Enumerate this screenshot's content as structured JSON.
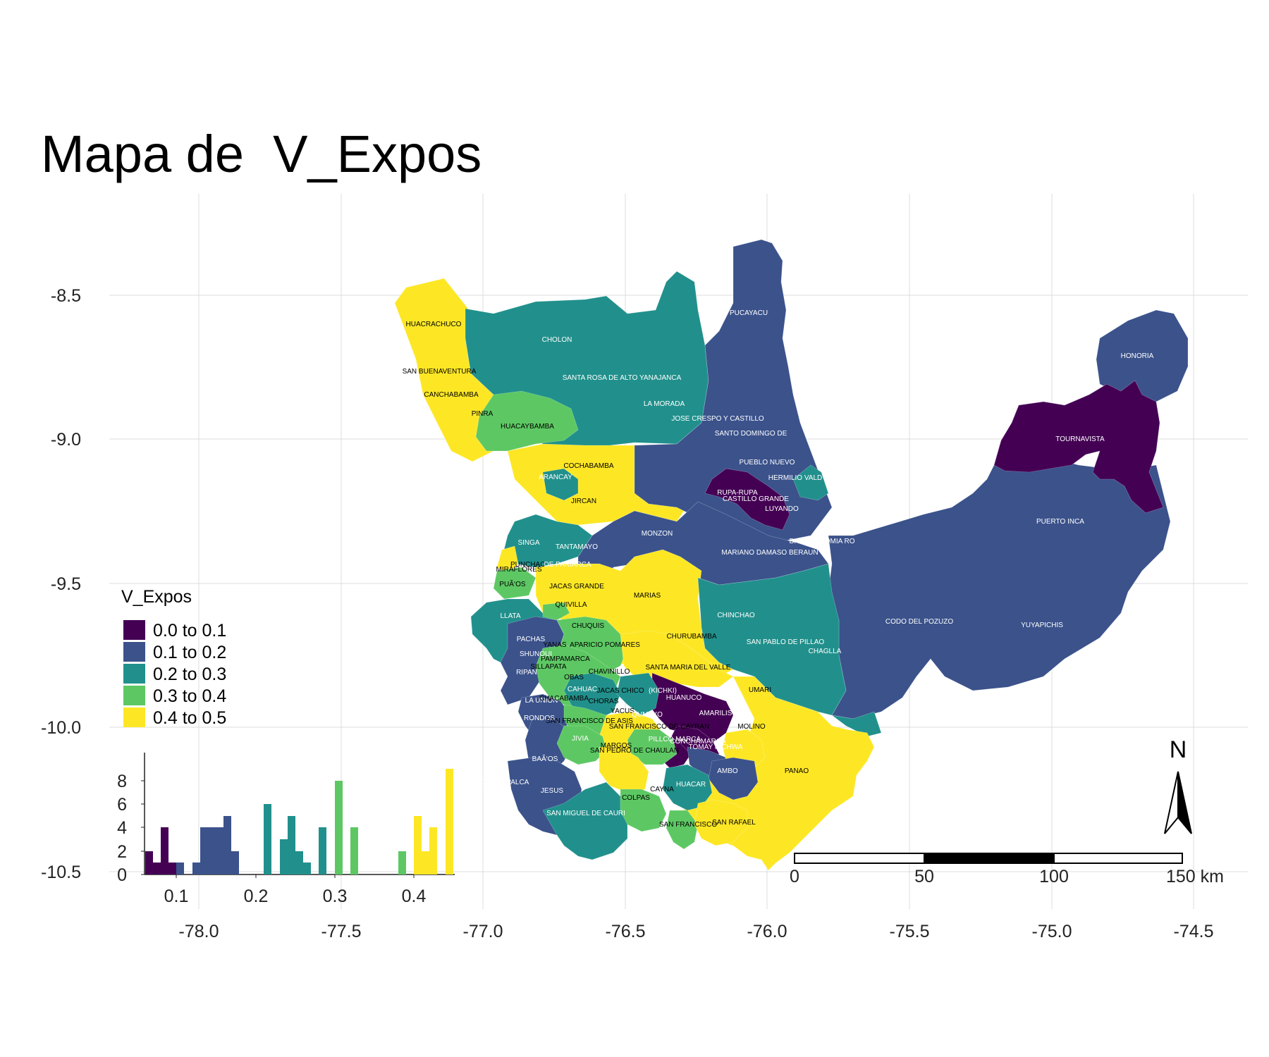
{
  "title": "Mapa de  V_Expos",
  "colors": {
    "bin0": "#440154",
    "bin1": "#3b528b",
    "bin2": "#21908c",
    "bin3": "#5dc863",
    "bin4": "#fde725",
    "grid": "#dcdcdc",
    "axis": "#222222"
  },
  "axes": {
    "x_ticks": [
      "-78.0",
      "-77.5",
      "-77.0",
      "-76.5",
      "-76.0",
      "-75.5",
      "-75.0",
      "-74.5"
    ],
    "y_ticks": [
      "-8.5",
      "-9.0",
      "-9.5",
      "-10.0",
      "-10.5"
    ]
  },
  "legend": {
    "title": "V_Expos",
    "items": [
      {
        "label": "0.0 to 0.1",
        "color": "#440154"
      },
      {
        "label": "0.1 to 0.2",
        "color": "#3b528b"
      },
      {
        "label": "0.2 to 0.3",
        "color": "#21908c"
      },
      {
        "label": "0.3 to 0.4",
        "color": "#5dc863"
      },
      {
        "label": "0.4 to 0.5",
        "color": "#fde725"
      }
    ]
  },
  "histogram": {
    "x_ticks": [
      "0.1",
      "0.2",
      "0.3",
      "0.4"
    ],
    "y_ticks": [
      "0",
      "2",
      "4",
      "6",
      "8"
    ]
  },
  "north_arrow": {
    "label": "N"
  },
  "scale_bar": {
    "labels": [
      "0",
      "50",
      "100",
      "150 km"
    ]
  },
  "districts": [
    {
      "name": "HUACRACHUCO",
      "bin": 4
    },
    {
      "name": "CHOLON",
      "bin": 2
    },
    {
      "name": "SAN BUENAVENTURA",
      "bin": 4
    },
    {
      "name": "SANTA ROSA DE ALTO YANAJANCA",
      "bin": 2
    },
    {
      "name": "CANCHABAMBA",
      "bin": 4
    },
    {
      "name": "PINRA",
      "bin": 4
    },
    {
      "name": "HUACAYBAMBA",
      "bin": 3
    },
    {
      "name": "LA MORADA",
      "bin": 2
    },
    {
      "name": "JOSE CRESPO Y CASTILLO",
      "bin": 1
    },
    {
      "name": "SANTO DOMINGO DE",
      "bin": 1
    },
    {
      "name": "PUCAYACU",
      "bin": 1
    },
    {
      "name": "HONORIA",
      "bin": 1
    },
    {
      "name": "TOURNAVISTA",
      "bin": 0
    },
    {
      "name": "COCHABAMBA",
      "bin": 4
    },
    {
      "name": "ARANCAY",
      "bin": 2
    },
    {
      "name": "JIRCAN",
      "bin": 4
    },
    {
      "name": "PUEBLO NUEVO",
      "bin": 1
    },
    {
      "name": "HERMILIO VALD",
      "bin": 2
    },
    {
      "name": "RUPA-RUPA",
      "bin": 0
    },
    {
      "name": "CASTILLO GRANDE",
      "bin": 0
    },
    {
      "name": "LUYANDO",
      "bin": 0
    },
    {
      "name": "PUERTO INCA",
      "bin": 1
    },
    {
      "name": "MONZON",
      "bin": 1
    },
    {
      "name": "SINGA",
      "bin": 2
    },
    {
      "name": "TANTAMAYO",
      "bin": 2
    },
    {
      "name": "DANIEL ALOMIA RO",
      "bin": 1
    },
    {
      "name": "MARIANO DAMASO BERAUN",
      "bin": 1
    },
    {
      "name": "PUNCHAO",
      "bin": 3
    },
    {
      "name": "MIRAFLORES",
      "bin": 4
    },
    {
      "name": "DE PARIARCA",
      "bin": 2
    },
    {
      "name": "PUÃ‘OS",
      "bin": 3
    },
    {
      "name": "JACAS GRANDE",
      "bin": 4
    },
    {
      "name": "MARIAS",
      "bin": 4
    },
    {
      "name": "QUIVILLA",
      "bin": 3
    },
    {
      "name": "LLATA",
      "bin": 2
    },
    {
      "name": "CHINCHAO",
      "bin": 2
    },
    {
      "name": "CODO DEL POZUZO",
      "bin": 1
    },
    {
      "name": "YUYAPICHIS",
      "bin": 1
    },
    {
      "name": "CHUQUIS",
      "bin": 3
    },
    {
      "name": "CHURUBAMBA",
      "bin": 4
    },
    {
      "name": "PACHAS",
      "bin": 1
    },
    {
      "name": "YANAS",
      "bin": 3
    },
    {
      "name": "APARICIO POMARES",
      "bin": 3
    },
    {
      "name": "SAN PABLO DE PILLAO",
      "bin": 2
    },
    {
      "name": "CHAGLLA",
      "bin": 2
    },
    {
      "name": "SHUNQUI",
      "bin": 1
    },
    {
      "name": "PAMPAMARCA",
      "bin": 3
    },
    {
      "name": "SILLAPATA",
      "bin": 3
    },
    {
      "name": "SANTA MARIA DEL VALLE",
      "bin": 4
    },
    {
      "name": "RIPAN",
      "bin": 1
    },
    {
      "name": "CHAVINILLO",
      "bin": 3
    },
    {
      "name": "OBAS",
      "bin": 3
    },
    {
      "name": "CAHUAC",
      "bin": 2
    },
    {
      "name": "JACAS CHICO",
      "bin": 3
    },
    {
      "name": "(KICHKI)",
      "bin": 2
    },
    {
      "name": "UMARI",
      "bin": 4
    },
    {
      "name": "LA UNION",
      "bin": 1
    },
    {
      "name": "CHACABAMBA",
      "bin": 3
    },
    {
      "name": "CHORAS",
      "bin": 3
    },
    {
      "name": "HUANUCO",
      "bin": 0
    },
    {
      "name": "YACUS",
      "bin": 4
    },
    {
      "name": "AMARILIS",
      "bin": 0
    },
    {
      "name": "RONDOS",
      "bin": 1
    },
    {
      "name": "SAN FRANCISCO DE ASIS",
      "bin": 3
    },
    {
      "name": "QUMAYO",
      "bin": 2
    },
    {
      "name": "SAN FRANCISCO DE CAYRAN",
      "bin": 3
    },
    {
      "name": "MOLINO",
      "bin": 4
    },
    {
      "name": "JIVIA",
      "bin": 1
    },
    {
      "name": "PILLCO MARCA",
      "bin": 0
    },
    {
      "name": "CONCHAMARCA",
      "bin": 1
    },
    {
      "name": "MARGOS",
      "bin": 4
    },
    {
      "name": "SAN PEDRO DE CHAULAN",
      "bin": 4
    },
    {
      "name": "TOMAY KICHWA",
      "bin": 1
    },
    {
      "name": "BAÃ‘OS",
      "bin": 1
    },
    {
      "name": "AMBO",
      "bin": 1
    },
    {
      "name": "PANAO",
      "bin": 4
    },
    {
      "name": "QUEROPALCA",
      "bin": 1
    },
    {
      "name": "HUACAR",
      "bin": 2
    },
    {
      "name": "JESUS",
      "bin": 1
    },
    {
      "name": "CAYNA",
      "bin": 3
    },
    {
      "name": "COLPAS",
      "bin": 3
    },
    {
      "name": "SAN MIGUEL DE CAURI",
      "bin": 2
    },
    {
      "name": "SAN FRANCISCO",
      "bin": 3
    },
    {
      "name": "SAN RAFAEL",
      "bin": 4
    }
  ]
}
